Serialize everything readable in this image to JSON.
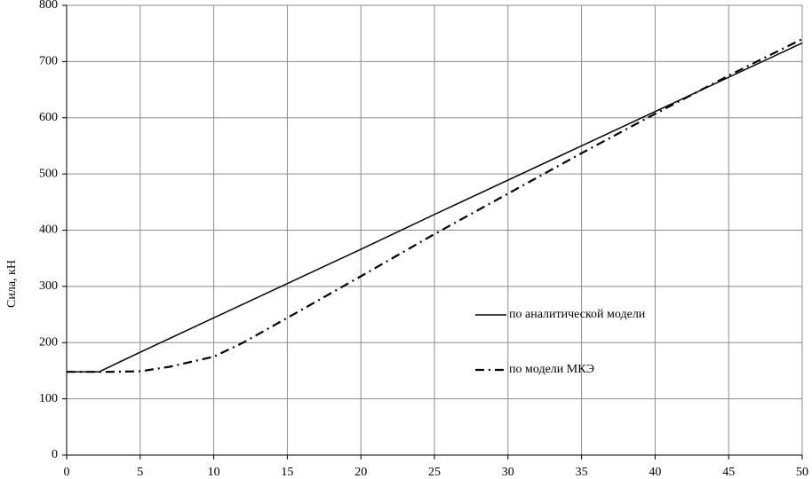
{
  "chart_data": {
    "type": "line",
    "ylabel": "Сила, кН",
    "series": [
      {
        "name": "по аналитической модели",
        "color": "#000000",
        "dash": "solid",
        "x": [
          0,
          2.2,
          5,
          10,
          15,
          20,
          25,
          30,
          35,
          40,
          45,
          50
        ],
        "values": [
          148,
          148,
          183,
          244,
          305,
          366,
          428,
          489,
          550,
          611,
          672,
          733
        ]
      },
      {
        "name": "по модели МКЭ",
        "color": "#000000",
        "dash": "dashdot",
        "x": [
          0,
          3,
          5,
          7,
          10,
          12,
          15,
          20,
          25,
          30,
          35,
          40,
          45,
          50
        ],
        "values": [
          148,
          148,
          149,
          157,
          175,
          200,
          244,
          318,
          393,
          465,
          537,
          607,
          675,
          740
        ]
      }
    ],
    "xlim": [
      0,
      50
    ],
    "xticks": [
      0,
      5,
      10,
      15,
      20,
      25,
      30,
      35,
      40,
      45,
      50
    ],
    "ylim": [
      0,
      800
    ],
    "yticks": [
      0,
      100,
      200,
      300,
      400,
      500,
      600,
      700,
      800
    ],
    "grid": true,
    "legend": "right"
  }
}
